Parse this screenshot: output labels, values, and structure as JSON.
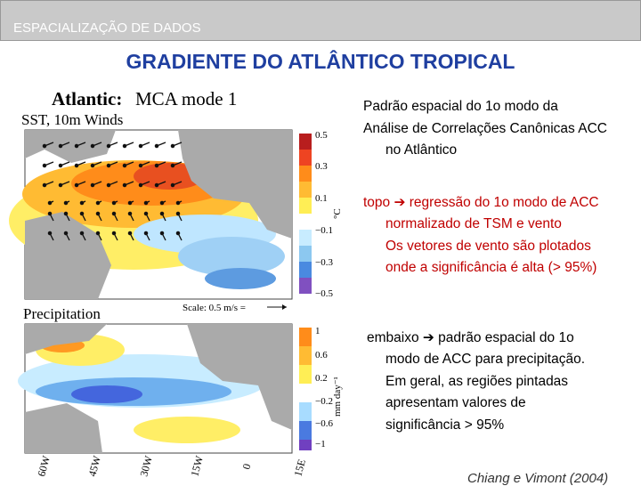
{
  "header": {
    "section": "ESPACIALIZAÇÃO DE DADOS",
    "title": "GRADIENTE DO ATLÂNTICO TROPICAL"
  },
  "figure": {
    "title_bold": "Atlantic:",
    "title": "MCA mode 1",
    "top_panel": {
      "label": "SST, 10m Winds",
      "colorbar_ticks": [
        "0.5",
        "0.3",
        "0.1",
        "−0.1",
        "−0.3",
        "−0.5"
      ],
      "unit": "°C",
      "scale": "Scale: 0.5 m/s ="
    },
    "bottom_panel": {
      "label": "Precipitation",
      "colorbar_ticks": [
        "1",
        "0.6",
        "0.2",
        "−0.2",
        "−0.6",
        "−1"
      ],
      "unit": "mm day⁻¹"
    },
    "longitudes": [
      "60W",
      "45W",
      "30W",
      "15W",
      "0",
      "15E"
    ]
  },
  "text": {
    "intro": [
      "Padrão espacial do 1o modo da",
      "Análise de Correlações Canônicas ACC",
      "no Atlântico"
    ],
    "top": [
      "topo ➔ regressão do 1o modo de ACC",
      "normalizado de TSM e vento",
      "Os vetores de vento são plotados",
      "onde a significância é alta (> 95%)"
    ],
    "bottom": [
      "embaixo ➔ padrão espacial do 1o",
      "modo de ACC para precipitação.",
      "Em geral, as regiões pintadas",
      "apresentam valores de",
      "significância > 95%"
    ]
  },
  "citation": "Chiang e Vimont (2004)"
}
